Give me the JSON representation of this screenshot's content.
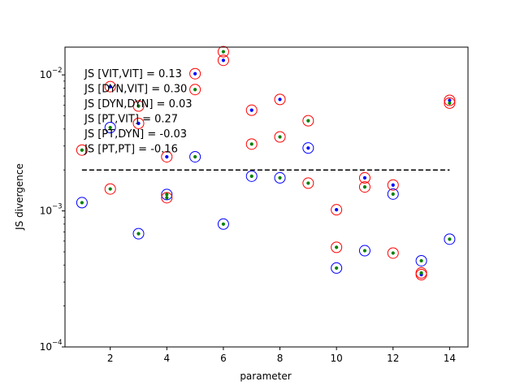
{
  "chart_data": {
    "type": "scatter",
    "title": "",
    "xlabel": "parameter",
    "ylabel": "JS divergence",
    "xlim": [
      0.4,
      14.65
    ],
    "ylim": [
      0.0001,
      0.016
    ],
    "yscale": "log",
    "x_ticks": [
      2,
      4,
      6,
      8,
      10,
      12,
      14
    ],
    "x_tick_labels": [
      "2",
      "4",
      "6",
      "8",
      "10",
      "12",
      "14"
    ],
    "y_ticks": [
      0.0001,
      0.001,
      0.01
    ],
    "y_tick_labels": [
      "10",
      "10",
      "10"
    ],
    "y_tick_exponents": [
      "−4",
      "−3",
      "−2"
    ],
    "grid": false,
    "colors": {
      "blue": "#0000ff",
      "green": "#008000",
      "red": "#ff0000",
      "threshold": "#000000"
    },
    "threshold_line": {
      "y": 0.002,
      "x_range": [
        1,
        14
      ],
      "style": "dashed"
    },
    "series": [
      {
        "marker": "blue-dot",
        "x": [
          2,
          3,
          4,
          5,
          6,
          7,
          8,
          9,
          10,
          11,
          12,
          13,
          14
        ],
        "y": [
          0.0082,
          0.0044,
          0.0025,
          0.0102,
          0.0128,
          0.0055,
          0.0066,
          0.0029,
          0.00102,
          0.00175,
          0.00155,
          0.00034,
          0.0065
        ]
      },
      {
        "marker": "green-dot",
        "x": [
          1,
          1,
          2,
          2,
          3,
          3,
          4,
          4,
          5,
          5,
          6,
          6,
          7,
          7,
          8,
          8,
          9,
          9,
          10,
          10,
          11,
          11,
          12,
          12,
          13,
          13,
          14,
          14
        ],
        "y": [
          0.00115,
          0.0028,
          0.0041,
          0.00145,
          0.00068,
          0.0059,
          0.00132,
          0.00125,
          0.0025,
          0.0078,
          0.0008,
          0.0148,
          0.0018,
          0.0031,
          0.00175,
          0.0035,
          0.0016,
          0.0046,
          0.00038,
          0.00054,
          0.00051,
          0.0015,
          0.00133,
          0.00049,
          0.00043,
          0.00035,
          0.00062,
          0.0062
        ]
      },
      {
        "marker": "blue-circle",
        "x": [
          1,
          2,
          3,
          4,
          5,
          6,
          7,
          8,
          9,
          10,
          11,
          12,
          13,
          14
        ],
        "y": [
          0.00115,
          0.0041,
          0.00068,
          0.00132,
          0.0025,
          0.0008,
          0.0018,
          0.00175,
          0.0029,
          0.00038,
          0.00051,
          0.00133,
          0.00043,
          0.00062
        ]
      },
      {
        "marker": "red-circle",
        "x": [
          1,
          2,
          2,
          3,
          3,
          4,
          4,
          5,
          5,
          6,
          6,
          7,
          7,
          8,
          8,
          9,
          9,
          10,
          10,
          11,
          11,
          12,
          12,
          13,
          13,
          14,
          14
        ],
        "y": [
          0.0028,
          0.0082,
          0.00145,
          0.0059,
          0.0044,
          0.0025,
          0.00125,
          0.0102,
          0.0078,
          0.0148,
          0.0128,
          0.0055,
          0.0031,
          0.0066,
          0.0035,
          0.0046,
          0.0016,
          0.00102,
          0.00054,
          0.00175,
          0.0015,
          0.00155,
          0.00049,
          0.00035,
          0.00034,
          0.0065,
          0.0062
        ]
      }
    ],
    "annotations": [
      "JS [VIT,VIT] = 0.13",
      "JS [DYN,VIT] = 0.30",
      "JS [DYN,DYN] = 0.03",
      "JS [PT,VIT] = 0.27",
      "JS [PT,DYN] = -0.03",
      "JS [PT,PT] = -0.16"
    ]
  }
}
